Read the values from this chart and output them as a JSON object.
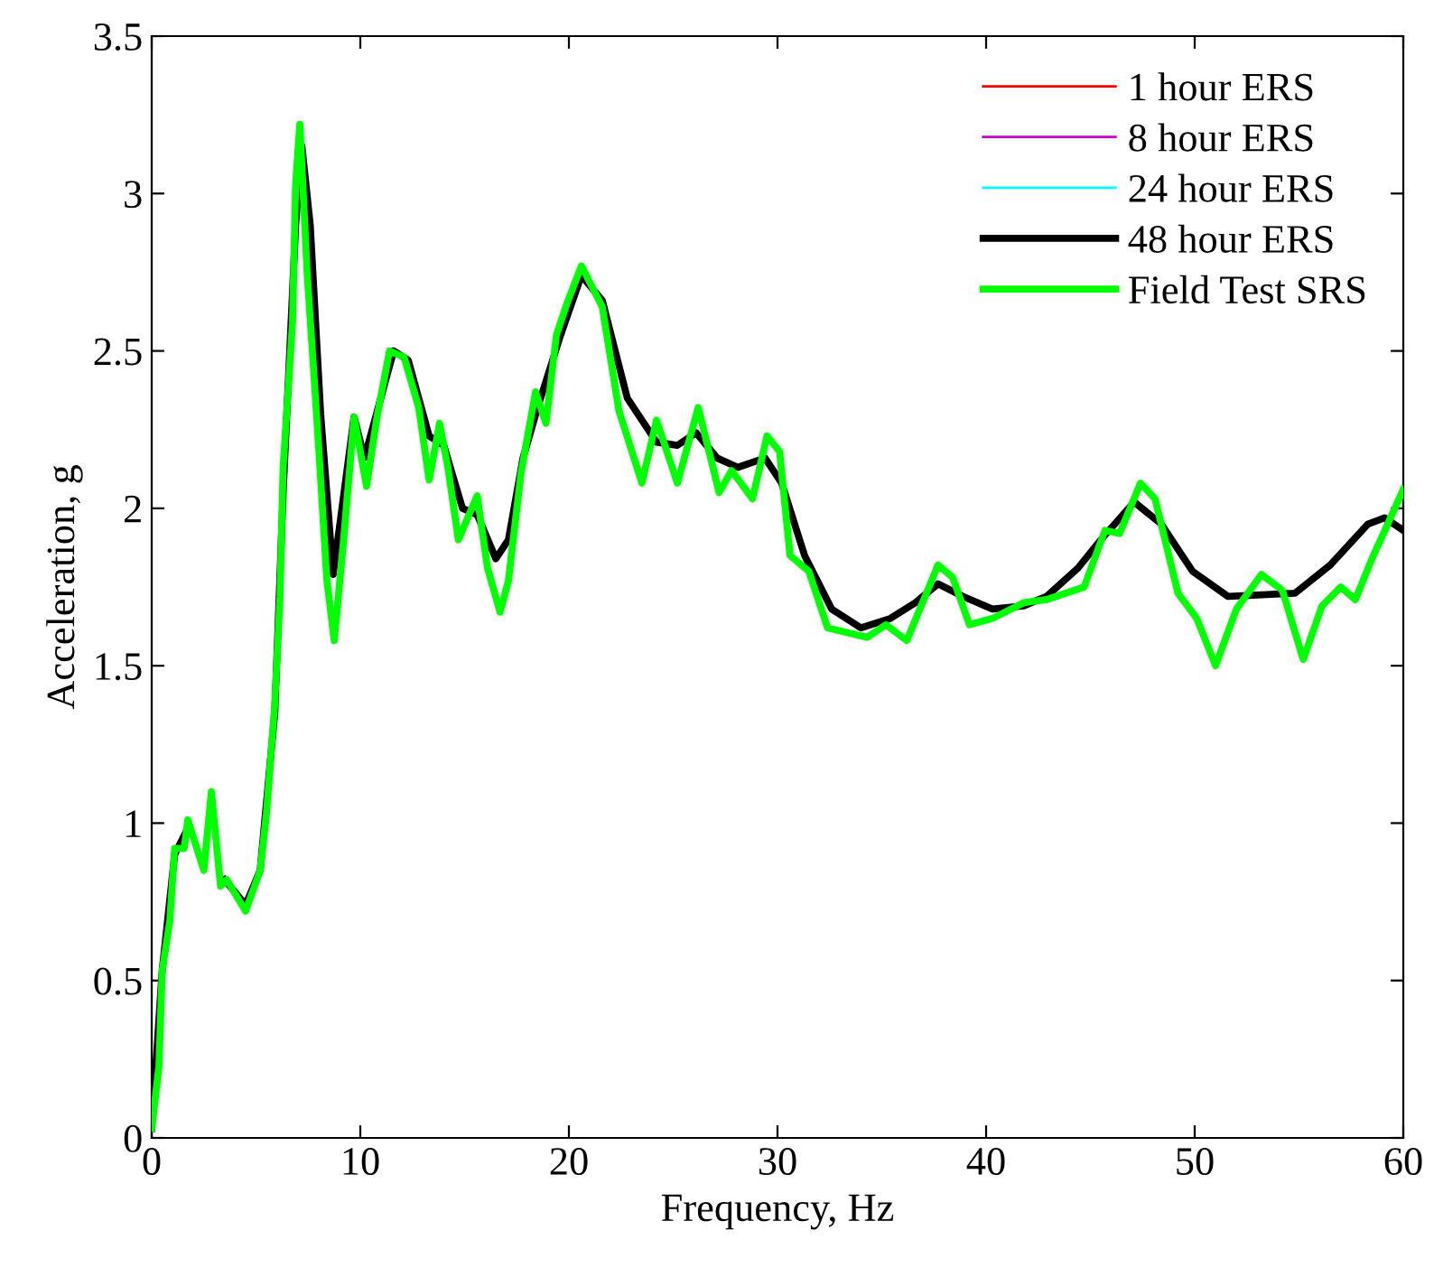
{
  "chart_data": {
    "type": "line",
    "xlabel": "Frequency, Hz",
    "ylabel": "Acceleration, g",
    "xlim": [
      0,
      60
    ],
    "ylim": [
      0,
      3.5
    ],
    "xticks": [
      0,
      10,
      20,
      30,
      40,
      50,
      60
    ],
    "yticks": [
      0,
      0.5,
      1,
      1.5,
      2,
      2.5,
      3,
      3.5
    ],
    "grid": false,
    "legend": "top right",
    "series": [
      {
        "name": "1 hour ERS",
        "color": "#ff0000",
        "values": [
          null
        ]
      },
      {
        "name": "8 hour ERS",
        "color": "#cc00cc",
        "values": [
          null
        ]
      },
      {
        "name": "24 hour ERS",
        "color": "#00ffff",
        "values": [
          null
        ]
      },
      {
        "name": "48 hour ERS",
        "color": "#000000",
        "x": [
          0,
          0.5,
          1.1,
          1.7,
          2.5,
          2.9,
          3.5,
          4.5,
          5.2,
          5.9,
          6.3,
          6.9,
          7.2,
          7.6,
          8.1,
          8.7,
          9.7,
          10.2,
          11.6,
          12.3,
          13.3,
          14.0,
          14.9,
          15.6,
          16.5,
          17.1,
          17.8,
          18.5,
          19.6,
          20.6,
          21.6,
          22.8,
          24.2,
          25.2,
          26.1,
          27.1,
          28.1,
          29.4,
          30.2,
          31.3,
          32.6,
          34.0,
          35.4,
          36.6,
          37.7,
          38.9,
          40.3,
          41.8,
          42.9,
          44.4,
          45.5,
          47.1,
          48.4,
          49.9,
          51.6,
          54.8,
          56.5,
          58.3,
          59.1,
          60
        ],
        "values": [
          0.03,
          0.53,
          0.9,
          0.98,
          null,
          null,
          0.82,
          0.74,
          0.85,
          1.35,
          2.05,
          2.9,
          3.15,
          2.9,
          2.3,
          1.79,
          2.29,
          2.16,
          2.5,
          2.47,
          2.23,
          2.2,
          2.0,
          1.98,
          1.84,
          1.9,
          2.16,
          2.32,
          2.55,
          2.74,
          2.66,
          2.35,
          2.21,
          2.2,
          2.24,
          2.16,
          2.13,
          2.16,
          2.08,
          1.85,
          1.68,
          1.62,
          1.65,
          1.7,
          1.76,
          1.72,
          1.68,
          1.69,
          1.72,
          1.81,
          1.9,
          2.02,
          1.95,
          1.8,
          1.72,
          1.73,
          1.82,
          1.95,
          1.97,
          1.93
        ]
      },
      {
        "name": "Field Test SRS",
        "color": "#00ff00",
        "x": [
          0,
          0.35,
          0.5,
          0.87,
          1.1,
          1.56,
          1.73,
          2.5,
          2.86,
          3.3,
          3.6,
          4.5,
          5.2,
          5.5,
          5.9,
          6.15,
          6.3,
          6.75,
          6.9,
          7.1,
          7.45,
          7.97,
          8.4,
          8.75,
          9.2,
          9.7,
          10.3,
          10.8,
          11.4,
          12.1,
          12.8,
          13.3,
          13.8,
          14.2,
          14.7,
          15.6,
          16.1,
          16.7,
          17.1,
          17.7,
          18.4,
          18.9,
          19.4,
          19.9,
          20.6,
          21.6,
          22.4,
          23.5,
          24.2,
          25.2,
          26.2,
          27.2,
          27.8,
          28.8,
          29.5,
          30.1,
          30.6,
          31.5,
          32.4,
          34.3,
          35.2,
          36.2,
          37.7,
          38.4,
          39.2,
          40.3,
          41.8,
          42.9,
          44.7,
          45.7,
          46.4,
          47.4,
          48.1,
          49.2,
          50.1,
          51.0,
          52.0,
          53.2,
          54.2,
          55.2,
          56.1,
          57.0,
          57.7,
          58.5,
          60
        ],
        "values": [
          0.03,
          0.23,
          0.53,
          0.69,
          0.92,
          0.92,
          1.01,
          0.85,
          1.1,
          0.8,
          0.82,
          0.72,
          0.85,
          1.03,
          1.38,
          1.72,
          2.13,
          2.59,
          3.03,
          3.22,
          2.75,
          2.23,
          1.77,
          1.58,
          1.9,
          2.29,
          2.07,
          2.29,
          2.5,
          2.48,
          2.32,
          2.09,
          2.27,
          2.13,
          1.9,
          2.04,
          1.81,
          1.67,
          1.77,
          2.11,
          2.37,
          2.27,
          2.55,
          2.65,
          2.77,
          2.64,
          2.31,
          2.08,
          2.28,
          2.08,
          2.32,
          2.05,
          2.12,
          2.03,
          2.23,
          2.18,
          1.85,
          1.8,
          1.62,
          1.59,
          1.63,
          1.58,
          1.82,
          1.78,
          1.63,
          1.65,
          1.7,
          1.71,
          1.75,
          1.93,
          1.92,
          2.08,
          2.03,
          1.73,
          1.65,
          1.5,
          1.68,
          1.79,
          1.74,
          1.52,
          1.69,
          1.75,
          1.71,
          1.84,
          2.06
        ]
      }
    ]
  }
}
